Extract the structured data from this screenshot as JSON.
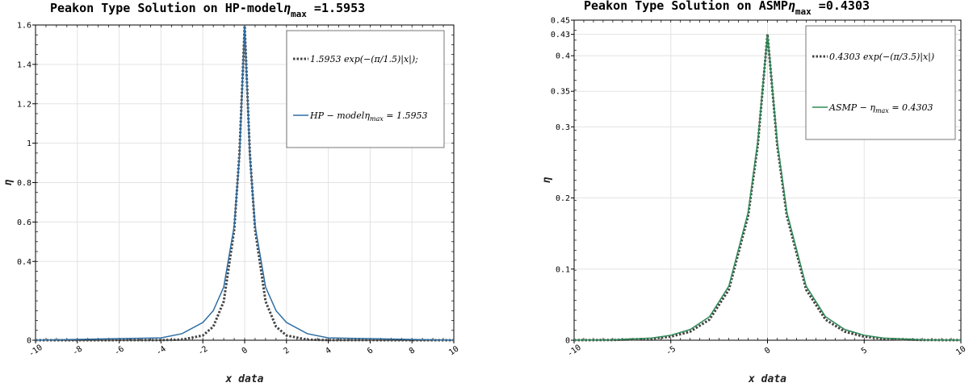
{
  "chart_data": [
    {
      "type": "line",
      "title": "Peakon Type Solution on HP-model",
      "title_eta": "η",
      "title_sub": "max",
      "title_value": " =1.5953",
      "xlabel": "x data",
      "ylabel": "η",
      "xlim": [
        -10,
        10
      ],
      "ylim": [
        0,
        1.6
      ],
      "x_ticks": [
        -10,
        -8,
        -6,
        -4,
        -2,
        0,
        2,
        4,
        6,
        8,
        10
      ],
      "y_ticks": [
        0,
        0.4,
        0.6,
        0.8,
        1,
        1.2,
        1.4,
        1.6
      ],
      "y_tick_labels": [
        "0",
        "0.4",
        "0.6",
        "0.8",
        "1",
        "1.2",
        "1.4",
        "1.6"
      ],
      "grid": true,
      "legend_position": "top-right",
      "series": [
        {
          "name": "1.5953 exp(−(π/1.5)|x|);",
          "style": "dotted",
          "color": "#444444",
          "amplitude": 1.5953,
          "k": 2.0944,
          "x": [
            -10,
            -4,
            -3,
            -2,
            -1.5,
            -1,
            -0.5,
            -0.25,
            0,
            0.25,
            0.5,
            1,
            1.5,
            2,
            3,
            4,
            10
          ],
          "values": [
            0.0,
            0.0004,
            0.003,
            0.024,
            0.069,
            0.197,
            0.56,
            0.946,
            1.5953,
            0.946,
            0.56,
            0.197,
            0.069,
            0.024,
            0.003,
            0.0004,
            0.0
          ]
        },
        {
          "name": "HP − modelη_max = 1.5953",
          "style": "solid",
          "color": "#2f6ea3",
          "amplitude": 1.5953,
          "x": [
            -10,
            -4,
            -3,
            -2,
            -1.5,
            -1,
            -0.5,
            -0.25,
            0,
            0.25,
            0.5,
            1,
            1.5,
            2,
            3,
            4,
            10
          ],
          "values": [
            0.0,
            0.012,
            0.033,
            0.09,
            0.15,
            0.27,
            0.58,
            0.93,
            1.5953,
            0.93,
            0.58,
            0.27,
            0.15,
            0.09,
            0.033,
            0.012,
            0.0
          ]
        }
      ],
      "legend": [
        {
          "text": "1.5953 exp(−(π/1.5)|x|);",
          "style": "dotted",
          "color": "#444444"
        },
        {
          "text": "HP − modelη",
          "sub": "max",
          "tail": " = 1.5953",
          "style": "solid",
          "color": "#2f6ea3"
        }
      ]
    },
    {
      "type": "line",
      "title": "Peakon Type Solution on ASMP",
      "title_eta": "η",
      "title_sub": "max",
      "title_value": " =0.4303",
      "xlabel": "x data",
      "ylabel": "η",
      "xlim": [
        -10,
        10
      ],
      "ylim": [
        0,
        0.45
      ],
      "x_ticks": [
        -10,
        -5,
        0,
        5,
        10
      ],
      "y_ticks": [
        0,
        0.1,
        0.2,
        0.3,
        0.35,
        0.4,
        0.43,
        0.45
      ],
      "y_tick_labels": [
        "0",
        "0.1",
        "0.2",
        "0.3",
        "0.35",
        "0.4",
        "0.43",
        "0.45"
      ],
      "grid": true,
      "legend_position": "top-right",
      "series": [
        {
          "name": "0.4303 exp(−(π/3.5)|x|)",
          "style": "dotted",
          "color": "#444444",
          "amplitude": 0.4303,
          "k": 0.8976,
          "x": [
            -10,
            -8,
            -6,
            -5,
            -4,
            -3,
            -2,
            -1,
            -0.5,
            0,
            0.5,
            1,
            2,
            3,
            4,
            5,
            6,
            8,
            10
          ],
          "values": [
            0.0001,
            0.0003,
            0.002,
            0.005,
            0.012,
            0.029,
            0.071,
            0.175,
            0.275,
            0.4303,
            0.275,
            0.175,
            0.071,
            0.029,
            0.012,
            0.005,
            0.002,
            0.0003,
            0.0001
          ]
        },
        {
          "name": "ASMP − η_max = 0.4303",
          "style": "solid",
          "color": "#2e8b57",
          "amplitude": 0.4303,
          "x": [
            -10,
            -8,
            -6,
            -5,
            -4,
            -3,
            -2,
            -1,
            -0.5,
            0,
            0.5,
            1,
            2,
            3,
            4,
            5,
            6,
            8,
            10
          ],
          "values": [
            0.0002,
            0.0005,
            0.003,
            0.007,
            0.015,
            0.033,
            0.076,
            0.18,
            0.28,
            0.4303,
            0.28,
            0.18,
            0.076,
            0.033,
            0.015,
            0.007,
            0.003,
            0.0005,
            0.0002
          ]
        }
      ],
      "legend": [
        {
          "text": "0.4303 exp(−(π/3.5)|x|)",
          "style": "dotted",
          "color": "#444444"
        },
        {
          "text": "ASMP − η",
          "sub": "max",
          "tail": " = 0.4303",
          "style": "solid",
          "color": "#2e8b57"
        }
      ]
    }
  ]
}
